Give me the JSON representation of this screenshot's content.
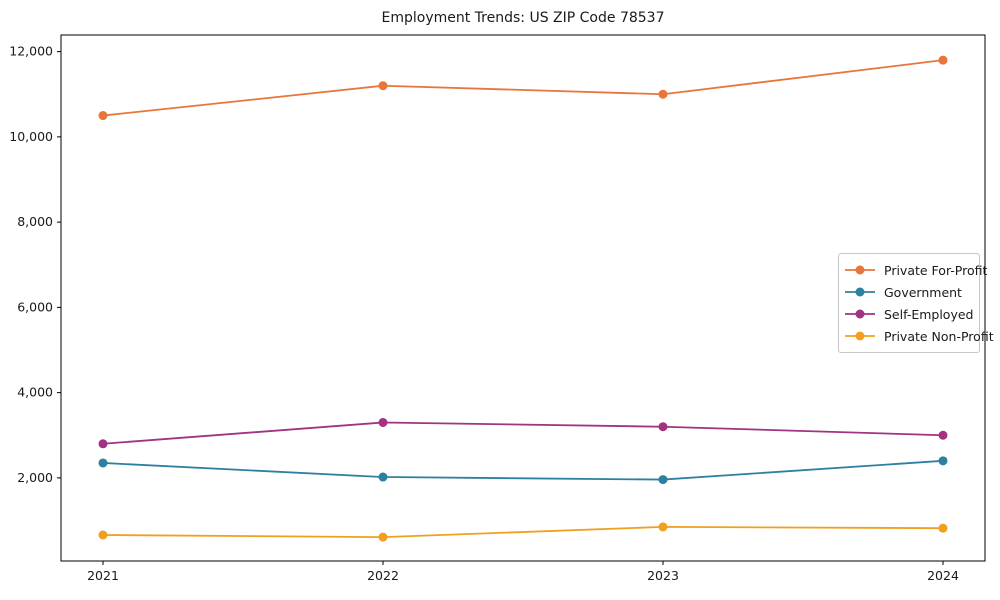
{
  "chart_data": {
    "type": "line",
    "title": "Employment Trends: US ZIP Code 78537",
    "x": [
      2021,
      2022,
      2023,
      2024
    ],
    "xticks": [
      "2021",
      "2022",
      "2023",
      "2024"
    ],
    "yticks": [
      2000,
      4000,
      6000,
      8000,
      10000,
      12000
    ],
    "xlim": [
      2020.85,
      2024.15
    ],
    "ylim": [
      50,
      12390
    ],
    "grid": false,
    "legend_position": "center right",
    "xlabel": "",
    "ylabel": "",
    "series": [
      {
        "name": "Private For-Profit",
        "color": "#E8763B",
        "values": [
          10500,
          11200,
          11000,
          11800
        ]
      },
      {
        "name": "Government",
        "color": "#2E80A0",
        "values": [
          2350,
          2020,
          1960,
          2400
        ]
      },
      {
        "name": "Self-Employed",
        "color": "#A23380",
        "values": [
          2800,
          3300,
          3200,
          3000
        ]
      },
      {
        "name": "Private Non-Profit",
        "color": "#F0A01E",
        "values": [
          660,
          610,
          850,
          820
        ]
      }
    ]
  }
}
